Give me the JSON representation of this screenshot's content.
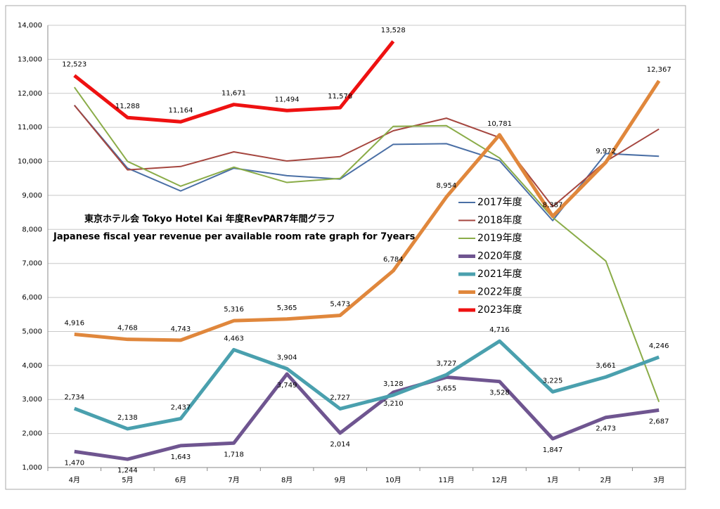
{
  "chart_data": {
    "type": "line",
    "title": "東京ホテル会 Tokyo Hotel Kai  年度RevPAR7年間グラフ",
    "subtitle": "Japanese fiscal year revenue per available room rate graph for 7years",
    "categories": [
      "4月",
      "5月",
      "6月",
      "7月",
      "8月",
      "9月",
      "10月",
      "11月",
      "12月",
      "1月",
      "2月",
      "3月"
    ],
    "ylim": [
      1000,
      14000
    ],
    "yticks": [
      {
        "value": 1000,
        "label": "1,000"
      },
      {
        "value": 2000,
        "label": "2,000"
      },
      {
        "value": 3000,
        "label": "3,000"
      },
      {
        "value": 4000,
        "label": "4,000"
      },
      {
        "value": 5000,
        "label": "5,000"
      },
      {
        "value": 6000,
        "label": "6,000"
      },
      {
        "value": 7000,
        "label": "7,000"
      },
      {
        "value": 8000,
        "label": "8,000"
      },
      {
        "value": 9000,
        "label": "9,000"
      },
      {
        "value": 10000,
        "label": "10,000"
      },
      {
        "value": 11000,
        "label": "11,000"
      },
      {
        "value": 12000,
        "label": "12,000"
      },
      {
        "value": 13000,
        "label": "13,000"
      },
      {
        "value": 14000,
        "label": "14,000"
      }
    ],
    "grid": true,
    "series": [
      {
        "name": "2017年度",
        "color": "#4a6fa5",
        "width": 2,
        "values": [
          11650,
          9800,
          9130,
          9800,
          9580,
          9480,
          10500,
          10520,
          10020,
          8260,
          10230,
          10150
        ]
      },
      {
        "name": "2018年度",
        "color": "#a5463f",
        "width": 2,
        "values": [
          11650,
          9750,
          9850,
          10280,
          10010,
          10140,
          10900,
          11270,
          10700,
          8670,
          10000,
          10950
        ]
      },
      {
        "name": "2019年度",
        "color": "#8aac48",
        "width": 2,
        "values": [
          12180,
          10000,
          9270,
          9830,
          9380,
          9500,
          11030,
          11050,
          10100,
          8350,
          7070,
          2930
        ]
      },
      {
        "name": "2020年度",
        "color": "#6f5590",
        "width": 5,
        "values": [
          1470,
          1244,
          1643,
          1718,
          3749,
          2014,
          3210,
          3655,
          3528,
          1847,
          2473,
          2687
        ],
        "value_labels": [
          "1,470",
          "1,244",
          "1,643",
          "1,718",
          "3,749",
          "2,014",
          "3,210",
          "3,655",
          "3,528",
          "1,847",
          "2,473",
          "2,687"
        ]
      },
      {
        "name": "2021年度",
        "color": "#4aa0ae",
        "width": 5,
        "values": [
          2734,
          2138,
          2437,
          4463,
          3904,
          2727,
          3128,
          3727,
          4716,
          3225,
          3661,
          4246
        ],
        "value_labels": [
          "2,734",
          "2,138",
          "2,437",
          "4,463",
          "3,904",
          "2,727",
          "3,128",
          "3,727",
          "4,716",
          "3,225",
          "3,661",
          "4,246"
        ]
      },
      {
        "name": "2022年度",
        "color": "#e0873c",
        "width": 5,
        "values": [
          4916,
          4768,
          4743,
          5316,
          5365,
          5473,
          6784,
          8954,
          10781,
          8387,
          9972,
          12367
        ],
        "value_labels": [
          "4,916",
          "4,768",
          "4,743",
          "5,316",
          "5,365",
          "5,473",
          "6,784",
          "8,954",
          "10,781",
          "8,387",
          "9,972",
          "12,367"
        ]
      },
      {
        "name": "2023年度",
        "color": "#ee1111",
        "width": 5,
        "values": [
          12523,
          11288,
          11164,
          11671,
          11494,
          11578,
          13528,
          null,
          null,
          null,
          null,
          null
        ],
        "value_labels": [
          "12,523",
          "11,288",
          "11,164",
          "11,671",
          "11,494",
          "11,578",
          "13,528",
          null,
          null,
          null,
          null,
          null
        ]
      }
    ]
  }
}
